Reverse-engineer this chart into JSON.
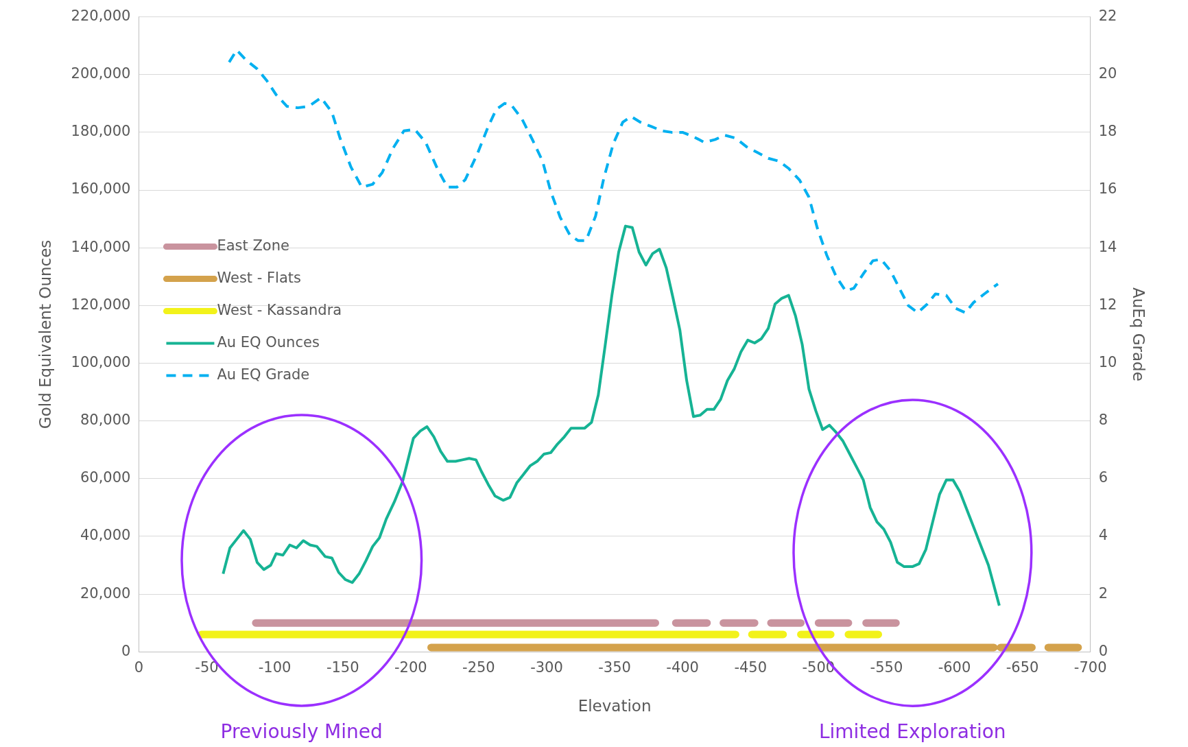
{
  "chart_data": {
    "type": "line",
    "xlabel": "Elevation",
    "ylabel": "Gold Equivalent Ounces",
    "y2label": "AuEq Grade",
    "xlim": [
      0,
      -700
    ],
    "xticks": [
      0,
      -50,
      -100,
      -150,
      -200,
      -250,
      -300,
      -350,
      -400,
      -450,
      -500,
      -550,
      -600,
      -650,
      -700
    ],
    "ylim": [
      0,
      220000
    ],
    "yticks": [
      0,
      {
        "value": 20000,
        "label": "20,000"
      },
      {
        "value": 40000,
        "label": "40,000"
      },
      {
        "value": 60000,
        "label": "60,000"
      },
      {
        "value": 80000,
        "label": "80,000"
      },
      {
        "value": 100000,
        "label": "100,000"
      },
      {
        "value": 120000,
        "label": "120,000"
      },
      {
        "value": 140000,
        "label": "140,000"
      },
      {
        "value": 160000,
        "label": "160,000"
      },
      {
        "value": 180000,
        "label": "180,000"
      },
      {
        "value": 200000,
        "label": "200,000"
      },
      {
        "value": 220000,
        "label": "220,000"
      }
    ],
    "y2lim": [
      0,
      22
    ],
    "y2ticks": [
      0,
      2,
      4,
      6,
      8,
      10,
      12,
      14,
      16,
      18,
      20,
      22
    ],
    "grid": "y",
    "legend": "left",
    "marker": "none",
    "annotations": [
      "Previously Mined",
      "Limited Exploration"
    ],
    "series": [
      {
        "name": "East Zone",
        "color": "#c9939e",
        "line_style": "solid",
        "x": [
          -86,
          -380,
          -387,
          -395,
          -418,
          -424,
          -430,
          -453,
          -459,
          -465,
          -487,
          -493,
          -500,
          -522,
          -528,
          -535,
          -557
        ],
        "values": [
          10000,
          10000,
          null,
          10000,
          10000,
          null,
          10000,
          10000,
          null,
          10000,
          10000,
          null,
          10000,
          10000,
          null,
          10000,
          10000
        ]
      },
      {
        "name": "West - Flats",
        "color": "#d4a24c",
        "line_style": "solid",
        "x": [
          -215,
          -629,
          -631,
          -634,
          -657,
          -663,
          -669,
          -691
        ],
        "values": [
          1500,
          1500,
          null,
          1500,
          1500,
          null,
          1500,
          1500
        ]
      },
      {
        "name": "West - Kassandra",
        "color": "#f2f21a",
        "line_style": "solid",
        "x": [
          -46,
          -439,
          -445,
          -451,
          -474,
          -480,
          -487,
          -509,
          -515,
          -522,
          -544
        ],
        "values": [
          6000,
          6000,
          null,
          6000,
          6000,
          null,
          6000,
          6000,
          null,
          6000,
          6000
        ]
      },
      {
        "name": "Au EQ Ounces",
        "color": "#16b394",
        "line_style": "solid",
        "x": [
          -62,
          -67,
          -72,
          -77,
          -82,
          -87,
          -92,
          -97,
          -101,
          -106,
          -111,
          -116,
          -121,
          -126,
          -131,
          -137,
          -142,
          -147,
          -152,
          -157,
          -162,
          -167,
          -172,
          -177,
          -182,
          -188,
          -194,
          -202,
          -207,
          -212,
          -217,
          -222,
          -227,
          -233,
          -238,
          -243,
          -248,
          -252,
          -257,
          -262,
          -268,
          -273,
          -278,
          -283,
          -288,
          -293,
          -298,
          -303,
          -308,
          -313,
          -318,
          -323,
          -328,
          -333,
          -338,
          -343,
          -348,
          -353,
          -358,
          -363,
          -368,
          -373,
          -378,
          -383,
          -388,
          -393,
          -398,
          -403,
          -408,
          -413,
          -418,
          -423,
          -428,
          -433,
          -438,
          -443,
          -448,
          -453,
          -458,
          -463,
          -468,
          -473,
          -478,
          -483,
          -488,
          -493,
          -498,
          -503,
          -508,
          -513,
          -518,
          -523,
          -528,
          -533,
          -538,
          -543,
          -548,
          -553,
          -558,
          -563,
          -569,
          -574,
          -579,
          -584,
          -589,
          -594,
          -599,
          -604,
          -611,
          -618,
          -625,
          -633
        ],
        "values": [
          27000,
          36000,
          39000,
          42000,
          39000,
          31000,
          28500,
          30000,
          34000,
          33500,
          37000,
          36000,
          38500,
          37000,
          36500,
          33000,
          32500,
          27500,
          25000,
          24000,
          27000,
          31500,
          36500,
          39500,
          46000,
          52000,
          59000,
          74000,
          76500,
          78000,
          74500,
          69500,
          66000,
          66000,
          66500,
          67000,
          66500,
          62500,
          58000,
          54000,
          52500,
          53500,
          58500,
          61500,
          64500,
          66000,
          68500,
          69000,
          72000,
          74500,
          77500,
          77500,
          77500,
          79500,
          89000,
          106000,
          123500,
          138500,
          147500,
          147000,
          138500,
          134000,
          138000,
          139500,
          133000,
          122500,
          111500,
          94000,
          81500,
          82000,
          84000,
          84000,
          87500,
          94000,
          98000,
          104000,
          108000,
          107000,
          108500,
          112000,
          120500,
          122500,
          123500,
          116500,
          106500,
          91000,
          83500,
          77000,
          78500,
          76000,
          73000,
          68500,
          64000,
          59500,
          50000,
          45000,
          42500,
          38000,
          31000,
          29500,
          29500,
          30500,
          35500,
          45000,
          54500,
          59500,
          59500,
          55500,
          47000,
          38500,
          30000,
          16000
        ]
      },
      {
        "name": "Au EQ Grade",
        "color": "#00b0f0",
        "line_style": "dashed",
        "axis": "y2",
        "x": [
          -66,
          -72,
          -79,
          -87,
          -94,
          -101,
          -109,
          -117,
          -125,
          -134,
          -142,
          -148,
          -156,
          -164,
          -172,
          -179,
          -187,
          -195,
          -203,
          -211,
          -220,
          -227,
          -234,
          -240,
          -249,
          -257,
          -263,
          -269,
          -274,
          -282,
          -290,
          -297,
          -303,
          -310,
          -317,
          -323,
          -329,
          -336,
          -342,
          -349,
          -356,
          -362,
          -369,
          -377,
          -385,
          -392,
          -400,
          -408,
          -416,
          -424,
          -431,
          -439,
          -447,
          -455,
          -463,
          -471,
          -478,
          -486,
          -493,
          -499,
          -506,
          -513,
          -520,
          -526,
          -533,
          -540,
          -546,
          -553,
          -560,
          -566,
          -573,
          -580,
          -586,
          -594,
          -601,
          -608,
          -614,
          -622,
          -632
        ],
        "values": [
          20.4,
          20.85,
          20.5,
          20.2,
          19.8,
          19.3,
          18.9,
          18.85,
          18.9,
          19.2,
          18.7,
          17.8,
          16.8,
          16.1,
          16.2,
          16.6,
          17.45,
          18.05,
          18.1,
          17.65,
          16.7,
          16.1,
          16.1,
          16.35,
          17.25,
          18.2,
          18.8,
          19,
          18.95,
          18.45,
          17.7,
          17,
          15.95,
          15.05,
          14.45,
          14.25,
          14.25,
          15.1,
          16.4,
          17.6,
          18.35,
          18.55,
          18.35,
          18.2,
          18.05,
          18,
          18,
          17.85,
          17.65,
          17.75,
          17.9,
          17.8,
          17.5,
          17.3,
          17.1,
          17,
          16.75,
          16.35,
          15.75,
          14.7,
          13.75,
          13,
          12.5,
          12.6,
          13.1,
          13.55,
          13.6,
          13.2,
          12.55,
          12,
          11.75,
          12.05,
          12.4,
          12.35,
          11.9,
          11.75,
          12.1,
          12.4,
          12.75
        ]
      }
    ]
  }
}
